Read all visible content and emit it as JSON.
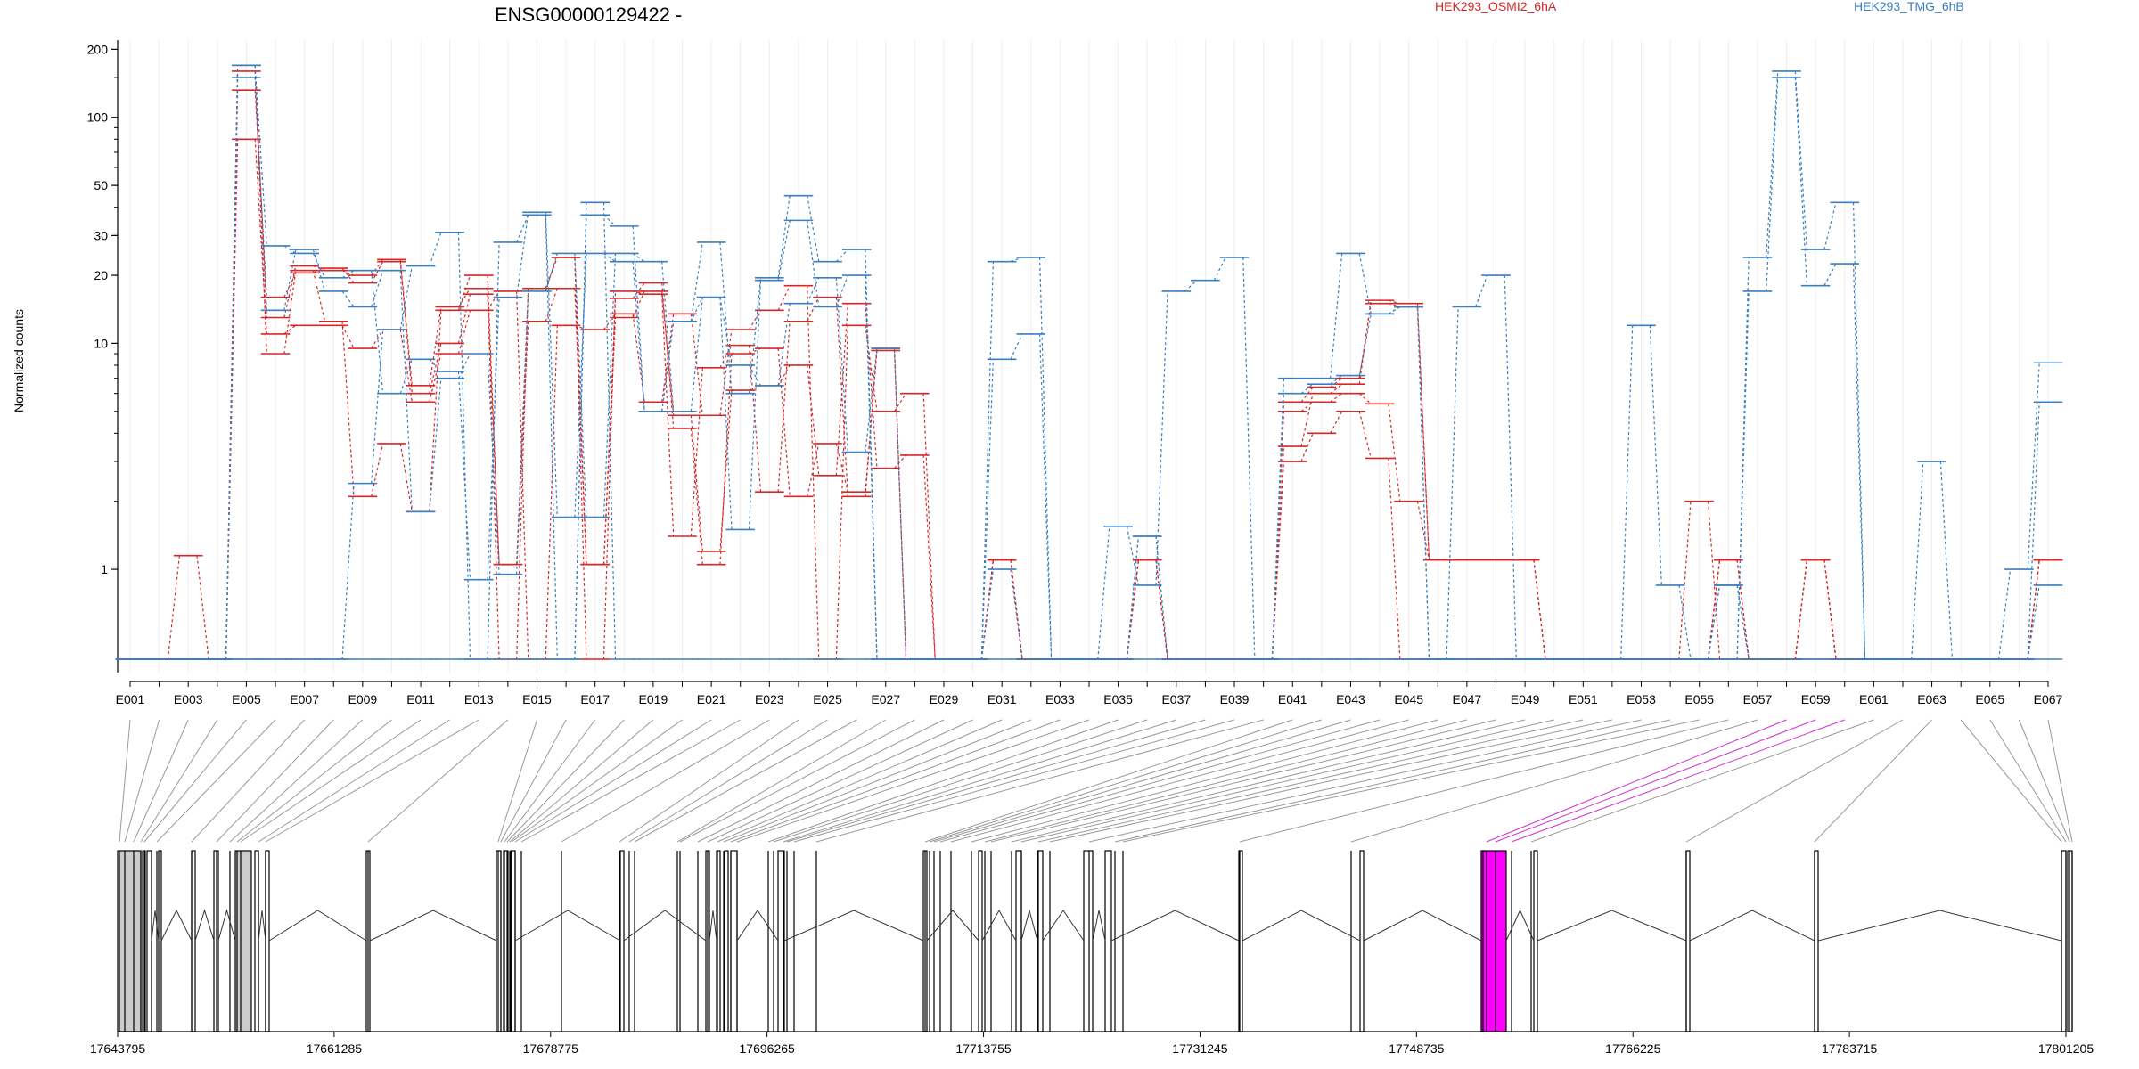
{
  "chart_data": {
    "type": "line",
    "title": "ENSG00000129422 -",
    "xlabel": "",
    "ylabel": "Normalized counts",
    "yscale": "log",
    "ylim": [
      0.4,
      210
    ],
    "yticks": [
      1,
      10,
      20,
      30,
      50,
      100,
      200
    ],
    "grid": true,
    "legend_position": "top-right",
    "legend": [
      {
        "label": "HEK293_OSMI2_6hA",
        "color": "#d62728"
      },
      {
        "label": "HEK293_TMG_6hB",
        "color": "#3a7fbf"
      }
    ],
    "x_tick_labels": [
      "E001",
      "E003",
      "E005",
      "E007",
      "E009",
      "E011",
      "E013",
      "E015",
      "E017",
      "E019",
      "E021",
      "E023",
      "E025",
      "E027",
      "E029",
      "E031",
      "E033",
      "E035",
      "E037",
      "E039",
      "E041",
      "E043",
      "E045",
      "E047",
      "E049",
      "E051",
      "E053",
      "E055",
      "E057",
      "E059",
      "E061",
      "E063",
      "E065",
      "E067"
    ],
    "categories": [
      "E001",
      "E002",
      "E003",
      "E004",
      "E005",
      "E006",
      "E007",
      "E008",
      "E009",
      "E010",
      "E011",
      "E012",
      "E013",
      "E014",
      "E015",
      "E016",
      "E017",
      "E018",
      "E019",
      "E020",
      "E021",
      "E022",
      "E023",
      "E024",
      "E025",
      "E026",
      "E027",
      "E028",
      "E029",
      "E030",
      "E031",
      "E032",
      "E033",
      "E034",
      "E035",
      "E036",
      "E037",
      "E038",
      "E039",
      "E040",
      "E041",
      "E042",
      "E043",
      "E044",
      "E045",
      "E046",
      "E047",
      "E048",
      "E049",
      "E050",
      "E051",
      "E052",
      "E053",
      "E054",
      "E055",
      "E056",
      "E057",
      "E058",
      "E059",
      "E060",
      "E061",
      "E062",
      "E063",
      "E064",
      "E065",
      "E066",
      "E067"
    ],
    "series": [
      {
        "color": "#d62728",
        "values": [
          0.4,
          0.4,
          0.4,
          0.4,
          80,
          11,
          12,
          12,
          9.5,
          11.5,
          5.5,
          9,
          14,
          17,
          0.4,
          12,
          11.5,
          13.5,
          5.5,
          13.5,
          4.8,
          11.5,
          14,
          18,
          0.4,
          12,
          5,
          6,
          0.4,
          0.4,
          1.1,
          0.4,
          0.4,
          0.4,
          0.4,
          1.1,
          0.4,
          0.4,
          0.4,
          0.4,
          3,
          4,
          5,
          3.1,
          0.4,
          0.4,
          0.4,
          0.4,
          0.4,
          0.4,
          0.4,
          0.4,
          0.4,
          0.4,
          2,
          0.4,
          0.4,
          0.4,
          1.1,
          0.4,
          0.4,
          0.4,
          0.4,
          0.4,
          0.4,
          0.4,
          1.1
        ]
      },
      {
        "color": "#d62728",
        "values": [
          0.4,
          0.4,
          1.15,
          0.4,
          132,
          16,
          20.5,
          21.5,
          18.5,
          23,
          6,
          10,
          16.5,
          1.05,
          12.5,
          17.5,
          1.05,
          13,
          17,
          4.8,
          1.2,
          6.2,
          6.5,
          8,
          2.6,
          15,
          2.8,
          3.2,
          0.4,
          0.4,
          1.1,
          0.4,
          0.4,
          0.4,
          0.4,
          1.1,
          0.4,
          0.4,
          0.4,
          0.4,
          5,
          5.5,
          6,
          5.4,
          2,
          1.1,
          1.1,
          1.1,
          1.1,
          0.4,
          0.4,
          0.4,
          0.4,
          0.4,
          0.4,
          1.1,
          0.4,
          0.4,
          1.1,
          0.4,
          0.4,
          0.4,
          0.4,
          0.4,
          0.4,
          0.4,
          1.1
        ]
      },
      {
        "color": "#d62728",
        "values": [
          0.4,
          0.4,
          0.4,
          0.4,
          160,
          9,
          21,
          12.5,
          2.1,
          3.6,
          1.8,
          14,
          20,
          1.05,
          17.5,
          24,
          1.05,
          15.8,
          18.5,
          4.2,
          1.05,
          9,
          9.5,
          2.1,
          3.6,
          2.2,
          9.3,
          0.4,
          0.4,
          0.4,
          1.1,
          0.4,
          0.4,
          0.4,
          0.4,
          1.1,
          0.4,
          0.4,
          0.4,
          0.4,
          3.5,
          6,
          6.6,
          15.5,
          15,
          1.1,
          1.1,
          1.1,
          1.1,
          0.4,
          0.4,
          0.4,
          0.4,
          0.4,
          0.4,
          1.1,
          0.4,
          0.4,
          1.1,
          0.4,
          0.4,
          0.4,
          0.4,
          0.4,
          0.4,
          0.4,
          1.1
        ]
      },
      {
        "color": "#d62728",
        "values": [
          0.4,
          0.4,
          0.4,
          0.4,
          170,
          13,
          22,
          21,
          20,
          23.5,
          6.5,
          14.5,
          17.5,
          0.4,
          17.5,
          24,
          0.4,
          17,
          16.5,
          1.4,
          7.8,
          9.8,
          2.2,
          12.5,
          16,
          2.1,
          9.5,
          0.4,
          0.4,
          0.4,
          1.1,
          0.4,
          0.4,
          0.4,
          0.4,
          1.1,
          0.4,
          0.4,
          0.4,
          0.4,
          5.5,
          6.4,
          7,
          15,
          14.5,
          1.1,
          1.1,
          1.1,
          1.1,
          0.4,
          0.4,
          0.4,
          0.4,
          0.4,
          0.4,
          1.1,
          0.4,
          0.4,
          1.1,
          0.4,
          0.4,
          0.4,
          0.4,
          0.4,
          0.4,
          0.4,
          1.1
        ]
      },
      {
        "color": "#3a7fbf",
        "values": [
          0.4,
          0.4,
          0.4,
          0.4,
          150,
          14,
          26,
          17,
          14.5,
          21,
          1.8,
          7,
          9,
          0.95,
          17,
          25,
          1.7,
          25,
          23,
          5,
          16,
          8,
          6.5,
          15,
          19.5,
          3.3,
          9.5,
          0.4,
          0.4,
          0.4,
          1.0,
          0.4,
          0.4,
          0.4,
          0.4,
          1.4,
          0.4,
          0.4,
          0.4,
          0.4,
          6,
          6.6,
          7.2,
          13.5,
          14.5,
          0.4,
          0.4,
          0.4,
          0.4,
          0.4,
          0.4,
          0.4,
          0.4,
          0.4,
          0.4,
          0.85,
          0.4,
          0.4,
          0.4,
          0.4,
          0.4,
          0.4,
          0.4,
          0.4,
          0.4,
          0.4,
          0.85
        ]
      },
      {
        "color": "#3a7fbf",
        "values": [
          0.4,
          0.4,
          0.4,
          0.4,
          170,
          27,
          25,
          19.5,
          21,
          6,
          8.5,
          7.5,
          0.9,
          16,
          38,
          1.7,
          25,
          23,
          5,
          12.5,
          16,
          1.5,
          19,
          35,
          14.5,
          20,
          0.4,
          0.4,
          0.4,
          0.4,
          8.5,
          11,
          0.4,
          0.4,
          0.4,
          1.4,
          0.4,
          0.4,
          0.4,
          0.4,
          7,
          7,
          25,
          13.5,
          14.5,
          0.4,
          0.4,
          0.4,
          0.4,
          0.4,
          0.4,
          0.4,
          0.4,
          0.4,
          0.4,
          0.85,
          0.4,
          0.4,
          0.4,
          0.4,
          0.4,
          0.4,
          0.4,
          0.4,
          0.4,
          0.4,
          5.5
        ]
      },
      {
        "color": "#3a7fbf",
        "values": [
          0.4,
          0.4,
          0.4,
          0.4,
          0.4,
          0.4,
          0.4,
          0.4,
          2.4,
          11.5,
          22,
          31,
          0.4,
          28,
          37,
          0.4,
          37,
          33,
          5,
          12.5,
          28,
          6,
          19.5,
          45,
          23,
          26,
          0.4,
          0.4,
          0.4,
          0.4,
          23,
          24,
          0.4,
          0.4,
          1.55,
          0.85,
          17,
          19,
          24,
          0.4,
          0.4,
          0.4,
          0.4,
          0.4,
          0.4,
          0.4,
          14.5,
          20,
          0.4,
          0.4,
          0.4,
          0.4,
          12,
          0.85,
          0.4,
          0.4,
          24,
          160,
          26,
          42,
          0.4,
          0.4,
          3,
          0.4,
          0.4,
          1.0,
          8.2
        ]
      },
      {
        "color": "#3a7fbf",
        "values": [
          0.4,
          0.4,
          0.4,
          0.4,
          0.4,
          0.4,
          0.4,
          0.4,
          0.4,
          0.4,
          0.4,
          0.4,
          0.4,
          0.4,
          0.4,
          0.4,
          42,
          0.4,
          0.4,
          0.4,
          0.4,
          0.4,
          0.4,
          0.4,
          0.4,
          0.4,
          0.4,
          0.4,
          0.4,
          0.4,
          0.4,
          0.4,
          0.4,
          0.4,
          0.4,
          0.4,
          0.4,
          0.4,
          0.4,
          0.4,
          0.4,
          0.4,
          0.4,
          0.4,
          0.4,
          0.4,
          0.4,
          0.4,
          0.4,
          0.4,
          0.4,
          0.4,
          0.4,
          0.4,
          0.4,
          0.4,
          17,
          150,
          18,
          22.5,
          0.4,
          0.4,
          0.4,
          0.4,
          0.4,
          0.4,
          0.4
        ]
      }
    ],
    "genomic_axis": {
      "tick_labels": [
        "17643795",
        "17661285",
        "17678775",
        "17696265",
        "17713755",
        "17731245",
        "17748735",
        "17766225",
        "17783715",
        "17801205"
      ],
      "start": 17643795,
      "end": 17801205
    }
  }
}
